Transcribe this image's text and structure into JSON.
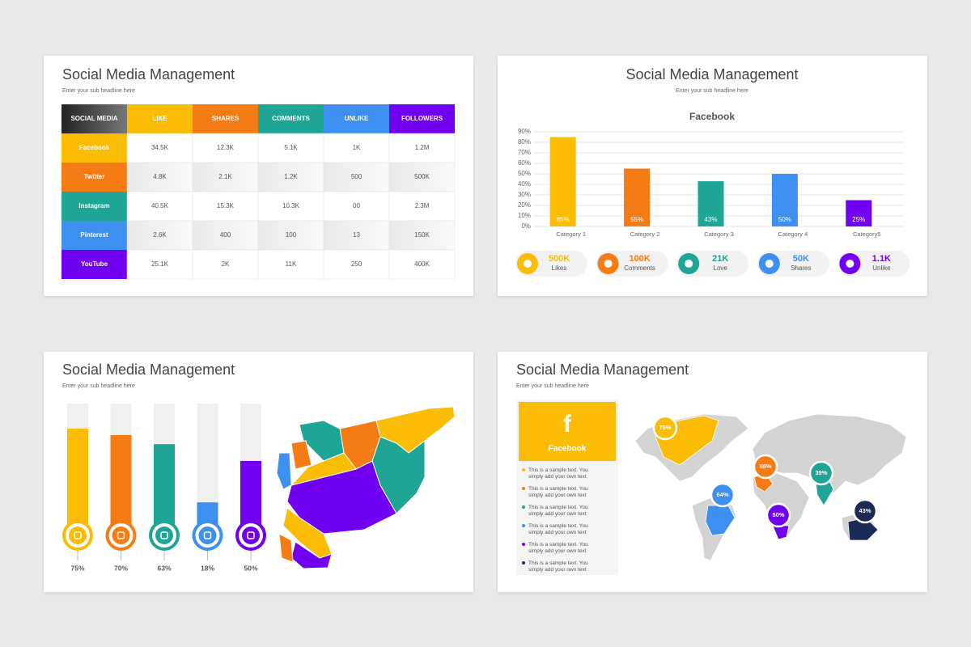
{
  "slides": [
    {
      "title": "Social Media Management",
      "subtitle": "Enter your sub headline here",
      "table": {
        "header": [
          "SOCIAL MEDIA",
          "LIKE",
          "SHARES",
          "COMMENTS",
          "UNLIKE",
          "FOLLOWERS"
        ],
        "header_colors": [
          "#333333",
          "#fbbc05",
          "#f57c14",
          "#1fa596",
          "#3d8ff0",
          "#7200f0"
        ],
        "row_colors": [
          "#fbbc05",
          "#f57c14",
          "#1fa596",
          "#3d8ff0",
          "#7200f0"
        ],
        "rows": [
          [
            "Facebook",
            "34.5K",
            "12.3K",
            "5.1K",
            "1K",
            "1.2M"
          ],
          [
            "Twitter",
            "4.8K",
            "2.1K",
            "1.2K",
            "500",
            "500K"
          ],
          [
            "Instagram",
            "40.5K",
            "15.3K",
            "10.3K",
            "00",
            "2.3M"
          ],
          [
            "Pinterest",
            "2.6K",
            "400",
            "100",
            "13",
            "150K"
          ],
          [
            "YouTube",
            "25.1K",
            "2K",
            "11K",
            "250",
            "400K"
          ]
        ]
      }
    },
    {
      "title": "Social Media Management",
      "subtitle": "Enter your sub headline here",
      "stats": [
        {
          "value": "500K",
          "label": "Likes",
          "color": "#fbbc05"
        },
        {
          "value": "100K",
          "label": "Comments",
          "color": "#f57c14"
        },
        {
          "value": "21K",
          "label": "Love",
          "color": "#1fa596"
        },
        {
          "value": "50K",
          "label": "Shares",
          "color": "#3d8ff0"
        },
        {
          "value": "1.1K",
          "label": "Unlike",
          "color": "#7200f0"
        }
      ]
    },
    {
      "title": "Social Media Management",
      "subtitle": "Enter your sub headline here"
    },
    {
      "title": "Social Media Management",
      "subtitle": "Enter your sub headline here",
      "card": {
        "title": "Facebook",
        "items": [
          {
            "text": "This is a sample text. You simply add your own text",
            "color": "#fbbc05"
          },
          {
            "text": "This is a sample text. You simply add your own text",
            "color": "#f57c14"
          },
          {
            "text": "This is a sample text. You simply add your own text",
            "color": "#1fa596"
          },
          {
            "text": "This is a sample text. You simply add your own text",
            "color": "#3d8ff0"
          },
          {
            "text": "This is a sample text. You simply add your own text",
            "color": "#7200f0"
          },
          {
            "text": "This is a sample text. You simply add your own text",
            "color": "#1b2a57"
          }
        ]
      },
      "map": {
        "pins": [
          {
            "label": "75%",
            "color": "#fbbc05"
          },
          {
            "label": "88%",
            "color": "#f57c14"
          },
          {
            "label": "39%",
            "color": "#1fa596"
          },
          {
            "label": "64%",
            "color": "#3d8ff0"
          },
          {
            "label": "50%",
            "color": "#7200f0"
          },
          {
            "label": "43%",
            "color": "#1b2a57"
          }
        ]
      }
    }
  ],
  "chart_data": [
    {
      "type": "bar",
      "title": "Facebook",
      "categories": [
        "Category 1",
        "Category 2",
        "Category 3",
        "Category 4",
        "Category5"
      ],
      "values": [
        85,
        55,
        43,
        50,
        25
      ],
      "value_labels": [
        "85%",
        "55%",
        "43%",
        "50%",
        "25%"
      ],
      "colors": [
        "#fbbc05",
        "#f57c14",
        "#1fa596",
        "#3d8ff0",
        "#7200f0"
      ],
      "ylim": [
        0,
        90
      ],
      "yticks": [
        {
          "value": 0,
          "label": "0%"
        },
        {
          "value": 10,
          "label": "10%"
        },
        {
          "value": 20,
          "label": "20%"
        },
        {
          "value": 30,
          "label": "30%"
        },
        {
          "value": 40,
          "label": "40%"
        },
        {
          "value": 50,
          "label": "50%"
        },
        {
          "value": 60,
          "label": "60%"
        },
        {
          "value": 70,
          "label": "70%"
        },
        {
          "value": 80,
          "label": "80%"
        },
        {
          "value": 90,
          "label": "90%"
        }
      ],
      "grid": true
    },
    {
      "type": "progress",
      "values": [
        75,
        70,
        63,
        18,
        50
      ],
      "value_labels": [
        "75%",
        "70%",
        "63%",
        "18%",
        "50%"
      ],
      "colors": [
        "#fbbc05",
        "#f57c14",
        "#1fa596",
        "#3d8ff0",
        "#7200f0"
      ],
      "ylim": [
        0,
        100
      ]
    }
  ]
}
